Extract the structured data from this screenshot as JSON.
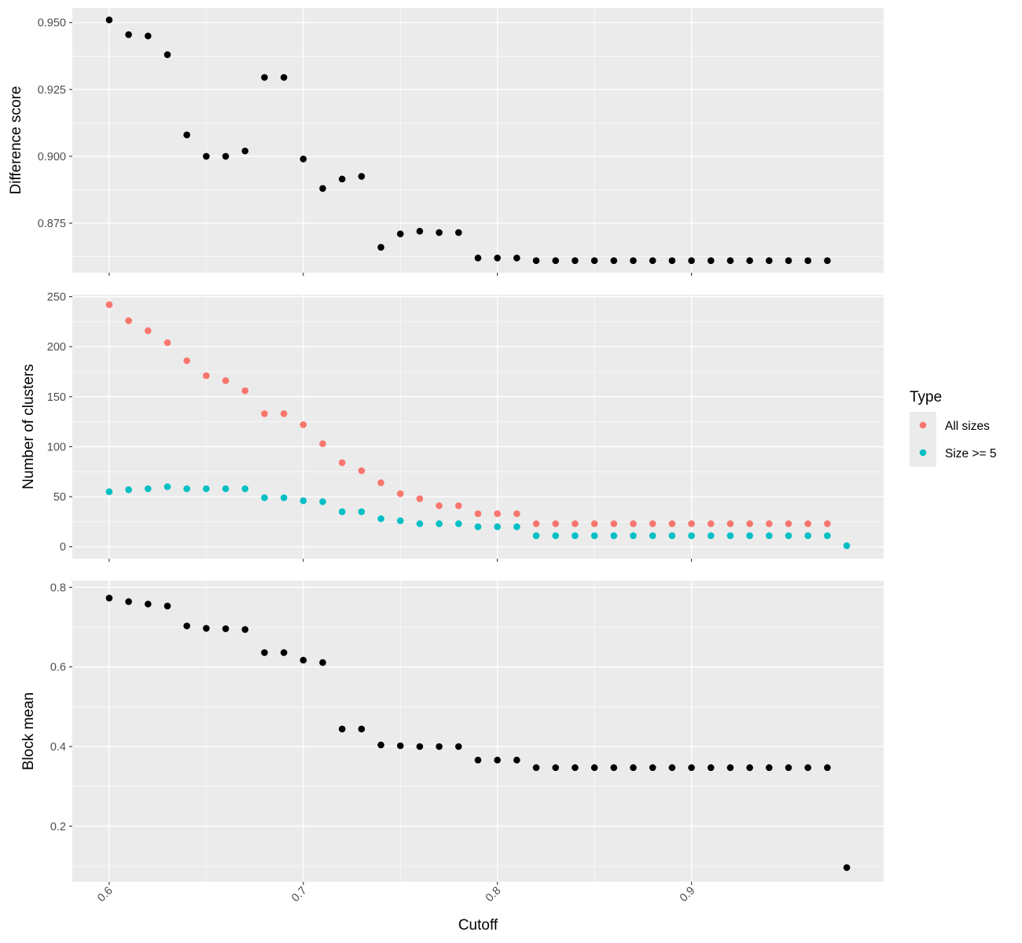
{
  "chart_data": {
    "type": "scatter",
    "x_axis": {
      "label": "Cutoff",
      "range": [
        0.581,
        0.999
      ],
      "ticks": [
        0.6,
        0.7,
        0.8,
        0.9
      ],
      "tick_labels": [
        "0.6",
        "0.7",
        "0.8",
        "0.9"
      ]
    },
    "panels": [
      {
        "ylabel": "Difference score",
        "ylim": [
          0.8565,
          0.9555
        ],
        "yticks": [
          0.875,
          0.9,
          0.925,
          0.95
        ],
        "ytick_labels": [
          "0.875",
          "0.900",
          "0.925",
          "0.950"
        ],
        "series": [
          {
            "color": "#000000",
            "x": [
              0.6,
              0.61,
              0.62,
              0.63,
              0.64,
              0.65,
              0.66,
              0.67,
              0.68,
              0.69,
              0.7,
              0.71,
              0.72,
              0.73,
              0.74,
              0.75,
              0.76,
              0.77,
              0.78,
              0.79,
              0.8,
              0.81,
              0.82,
              0.83,
              0.84,
              0.85,
              0.86,
              0.87,
              0.88,
              0.89,
              0.9,
              0.91,
              0.92,
              0.93,
              0.94,
              0.95,
              0.96,
              0.97
            ],
            "y": [
              0.951,
              0.9455,
              0.945,
              0.938,
              0.908,
              0.9,
              0.9,
              0.902,
              0.9295,
              0.9295,
              0.899,
              0.888,
              0.8915,
              0.8925,
              0.866,
              0.871,
              0.872,
              0.8715,
              0.8715,
              0.862,
              0.862,
              0.862,
              0.861,
              0.861,
              0.861,
              0.861,
              0.861,
              0.861,
              0.861,
              0.861,
              0.861,
              0.861,
              0.861,
              0.861,
              0.861,
              0.861,
              0.861,
              0.861
            ]
          }
        ]
      },
      {
        "ylabel": "Number of clusters",
        "ylim": [
          -12,
          252
        ],
        "yticks": [
          0,
          50,
          100,
          150,
          200,
          250
        ],
        "ytick_labels": [
          "0",
          "50",
          "100",
          "150",
          "200",
          "250"
        ],
        "series": [
          {
            "name": "All sizes",
            "color": "#F8766D",
            "x": [
              0.6,
              0.61,
              0.62,
              0.63,
              0.64,
              0.65,
              0.66,
              0.67,
              0.68,
              0.69,
              0.7,
              0.71,
              0.72,
              0.73,
              0.74,
              0.75,
              0.76,
              0.77,
              0.78,
              0.79,
              0.8,
              0.81,
              0.82,
              0.83,
              0.84,
              0.85,
              0.86,
              0.87,
              0.88,
              0.89,
              0.9,
              0.91,
              0.92,
              0.93,
              0.94,
              0.95,
              0.96,
              0.97
            ],
            "y": [
              242,
              226,
              216,
              204,
              186,
              171,
              166,
              156,
              133,
              133,
              122,
              103,
              84,
              76,
              64,
              53,
              48,
              41,
              41,
              33,
              33,
              33,
              23,
              23,
              23,
              23,
              23,
              23,
              23,
              23,
              23,
              23,
              23,
              23,
              23,
              23,
              23,
              23
            ]
          },
          {
            "name": "Size >= 5",
            "color": "#00BFC4",
            "x": [
              0.6,
              0.61,
              0.62,
              0.63,
              0.64,
              0.65,
              0.66,
              0.67,
              0.68,
              0.69,
              0.7,
              0.71,
              0.72,
              0.73,
              0.74,
              0.75,
              0.76,
              0.77,
              0.78,
              0.79,
              0.8,
              0.81,
              0.82,
              0.83,
              0.84,
              0.85,
              0.86,
              0.87,
              0.88,
              0.89,
              0.9,
              0.91,
              0.92,
              0.93,
              0.94,
              0.95,
              0.96,
              0.97,
              0.98
            ],
            "y": [
              55,
              57,
              58,
              60,
              58,
              58,
              58,
              58,
              49,
              49,
              46,
              45,
              35,
              35,
              28,
              26,
              23,
              23,
              23,
              20,
              20,
              20,
              11,
              11,
              11,
              11,
              11,
              11,
              11,
              11,
              11,
              11,
              11,
              11,
              11,
              11,
              11,
              11,
              1
            ]
          }
        ]
      },
      {
        "ylabel": "Block mean",
        "ylim": [
          0.0605,
          0.8165
        ],
        "yticks": [
          0.2,
          0.4,
          0.6,
          0.8
        ],
        "ytick_labels": [
          "0.2",
          "0.4",
          "0.6",
          "0.8"
        ],
        "series": [
          {
            "color": "#000000",
            "x": [
              0.6,
              0.61,
              0.62,
              0.63,
              0.64,
              0.65,
              0.66,
              0.67,
              0.68,
              0.69,
              0.7,
              0.71,
              0.72,
              0.73,
              0.74,
              0.75,
              0.76,
              0.77,
              0.78,
              0.79,
              0.8,
              0.81,
              0.82,
              0.83,
              0.84,
              0.85,
              0.86,
              0.87,
              0.88,
              0.89,
              0.9,
              0.91,
              0.92,
              0.93,
              0.94,
              0.95,
              0.96,
              0.97,
              0.98
            ],
            "y": [
              0.773,
              0.764,
              0.758,
              0.753,
              0.703,
              0.697,
              0.696,
              0.694,
              0.636,
              0.636,
              0.617,
              0.611,
              0.444,
              0.444,
              0.404,
              0.402,
              0.4,
              0.4,
              0.4,
              0.366,
              0.366,
              0.366,
              0.347,
              0.347,
              0.347,
              0.347,
              0.347,
              0.347,
              0.347,
              0.347,
              0.347,
              0.347,
              0.347,
              0.347,
              0.347,
              0.347,
              0.347,
              0.347,
              0.096
            ]
          }
        ]
      }
    ],
    "legend": {
      "title": "Type",
      "position": "right",
      "entries": [
        {
          "label": "All sizes",
          "color": "#F8766D"
        },
        {
          "label": "Size >= 5",
          "color": "#00BFC4"
        }
      ]
    },
    "grid": true,
    "panel_background": "#EBEBEB"
  }
}
